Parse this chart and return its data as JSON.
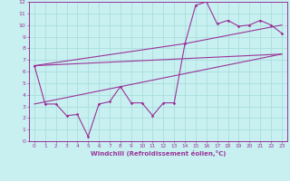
{
  "xlabel": "Windchill (Refroidissement éolien,°C)",
  "bg_color": "#c8f0f0",
  "line_color": "#993399",
  "grid_color": "#aadddd",
  "axis_color": "#993399",
  "text_color": "#993399",
  "xlim": [
    -0.5,
    23.5
  ],
  "ylim": [
    0,
    12
  ],
  "xticks": [
    0,
    1,
    2,
    3,
    4,
    5,
    6,
    7,
    8,
    9,
    10,
    11,
    12,
    13,
    14,
    15,
    16,
    17,
    18,
    19,
    20,
    21,
    22,
    23
  ],
  "yticks": [
    0,
    1,
    2,
    3,
    4,
    5,
    6,
    7,
    8,
    9,
    10,
    11,
    12
  ],
  "line1_x": [
    0,
    1,
    2,
    3,
    4,
    5,
    6,
    7,
    8,
    9,
    10,
    11,
    12,
    13,
    14,
    15,
    16,
    17,
    18,
    19,
    20,
    21,
    22,
    23
  ],
  "line1_y": [
    6.5,
    3.2,
    3.2,
    2.2,
    2.3,
    0.4,
    3.2,
    3.4,
    4.7,
    3.3,
    3.3,
    2.2,
    3.3,
    3.3,
    8.4,
    11.7,
    12.0,
    10.1,
    10.4,
    9.9,
    10.0,
    10.4,
    10.0,
    9.3
  ],
  "line2_x": [
    0,
    23
  ],
  "line2_y": [
    6.5,
    7.5
  ],
  "line3_x": [
    0,
    23
  ],
  "line3_y": [
    3.2,
    7.5
  ],
  "line4_x": [
    0,
    14,
    23
  ],
  "line4_y": [
    6.5,
    8.4,
    10.0
  ]
}
